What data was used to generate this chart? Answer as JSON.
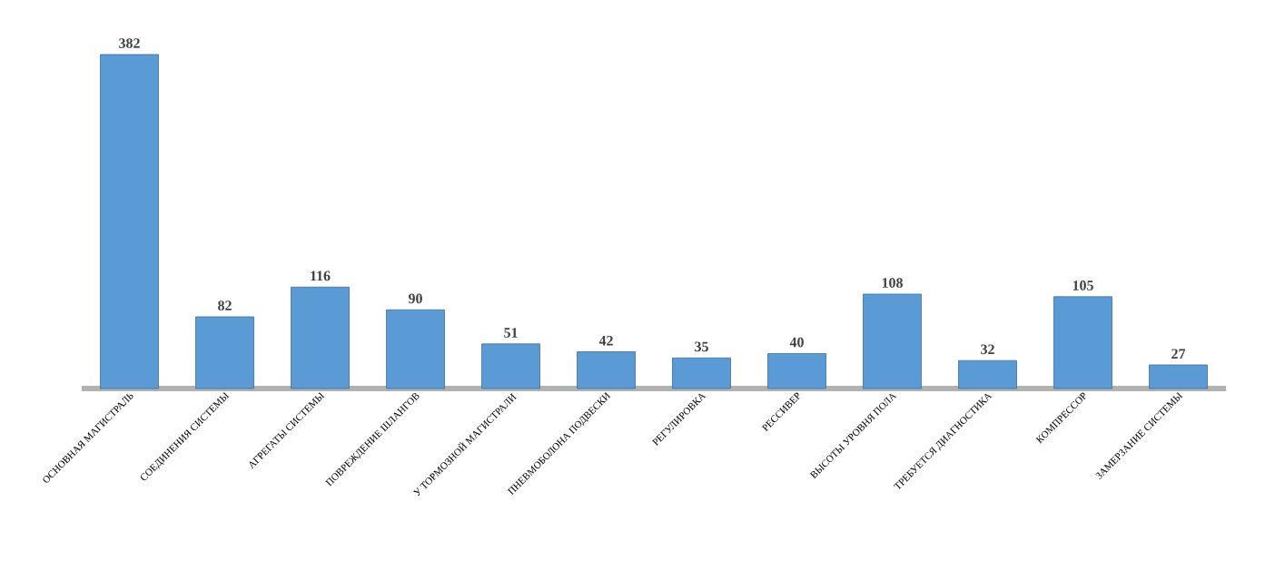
{
  "chart_data": {
    "type": "bar",
    "categories": [
      "ОСНОВНАЯ МАГИСТРАЛЬ",
      "СОЕДИНЕНИЯ СИСТЕМЫ",
      "АГРЕГАТЫ СИСТЕМЫ",
      "ПОВРЕЖДЕНИЕ ШЛАНГОВ",
      "У ТОРМОЗНОЙ МАГИСТРАЛИ",
      "ПНЕВМОБОЛОНА ПОДВЕСКИ",
      "РЕГУЛИРОВКА",
      "РЕССИВЕР",
      "ВЫСОТЫ УРОВНЯ ПОЛА",
      "ТРЕБУЕТСЯ ДИАГНОСТИКА",
      "КОМПРЕССОР",
      "ЗАМЕРЗАНИЕ СИСТЕМЫ"
    ],
    "values": [
      382,
      82,
      116,
      90,
      51,
      42,
      35,
      40,
      108,
      32,
      105,
      27
    ],
    "color": "#5b9bd5",
    "data_labels": true,
    "tick_labels": "x"
  }
}
